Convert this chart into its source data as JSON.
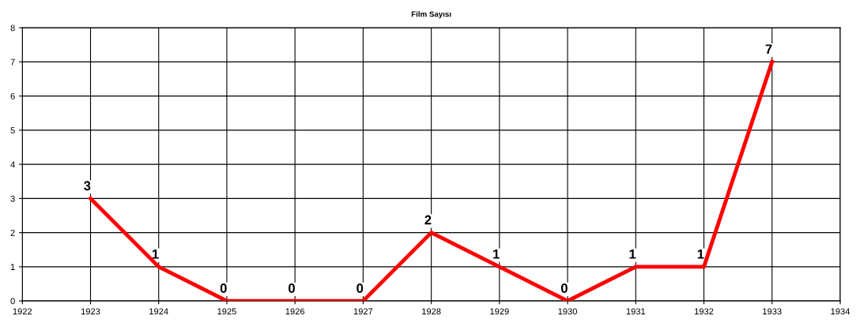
{
  "chart_data": {
    "type": "line",
    "title": "Film Sayısı",
    "x": [
      1923,
      1924,
      1925,
      1926,
      1927,
      1928,
      1929,
      1930,
      1931,
      1932,
      1933
    ],
    "series": [
      {
        "color": "#ff0000",
        "values": [
          3,
          1,
          0,
          0,
          0,
          2,
          1,
          0,
          1,
          1,
          7
        ]
      }
    ],
    "xlim": [
      1922,
      1934
    ],
    "xticks": [
      1922,
      1923,
      1924,
      1925,
      1926,
      1927,
      1928,
      1929,
      1930,
      1931,
      1932,
      1933,
      1934
    ],
    "ylim": [
      0,
      8
    ],
    "yticks": [
      0,
      1,
      2,
      3,
      4,
      5,
      6,
      7,
      8
    ],
    "grid": true,
    "data_labels": true,
    "marker": "none",
    "line_style": "solid"
  }
}
